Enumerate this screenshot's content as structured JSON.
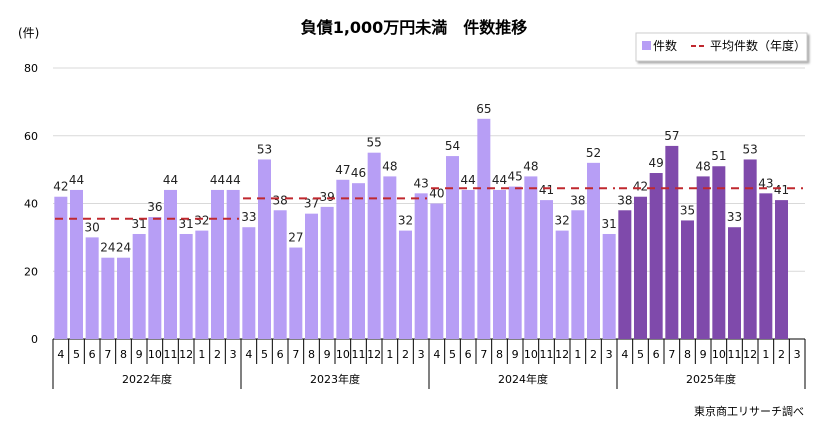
{
  "chart_data": {
    "type": "bar",
    "title": "負債1,000万円未満　件数推移",
    "ylabel": "(件)",
    "ylim": [
      0,
      80
    ],
    "yticks": [
      0,
      20,
      40,
      60,
      80
    ],
    "grid": true,
    "legend_position": "top-right",
    "legend": {
      "bars": "件数",
      "line": "平均件数（年度）"
    },
    "source": "東京商工リサーチ調べ",
    "colors": {
      "bar": "#b79ef5",
      "bar_current": "#7f4aab",
      "avg_line": "#c0282e"
    },
    "groups": [
      {
        "label": "2022年度",
        "months": [
          "4",
          "5",
          "6",
          "7",
          "8",
          "9",
          "10",
          "11",
          "12",
          "1",
          "2",
          "3"
        ],
        "values": [
          42,
          44,
          30,
          24,
          24,
          31,
          36,
          44,
          31,
          32,
          44,
          44
        ],
        "average": 35.5
      },
      {
        "label": "2023年度",
        "months": [
          "4",
          "5",
          "6",
          "7",
          "8",
          "9",
          "10",
          "11",
          "12",
          "1",
          "2",
          "3"
        ],
        "values": [
          33,
          53,
          38,
          27,
          37,
          39,
          47,
          46,
          55,
          48,
          32,
          43
        ],
        "average": 41.5
      },
      {
        "label": "2024年度",
        "months": [
          "4",
          "5",
          "6",
          "7",
          "8",
          "9",
          "10",
          "11",
          "12",
          "1",
          "2",
          "3"
        ],
        "values": [
          40,
          54,
          44,
          65,
          44,
          45,
          48,
          41,
          32,
          38,
          52,
          31
        ],
        "average": 44.5
      },
      {
        "label": "2025年度",
        "months": [
          "4",
          "5",
          "6",
          "7",
          "8",
          "9",
          "10",
          "11",
          "12",
          "1",
          "2",
          "3"
        ],
        "values": [
          38,
          42,
          49,
          57,
          35,
          48,
          51,
          33,
          53,
          43,
          41,
          null
        ],
        "average": 44.5,
        "highlight": true
      }
    ]
  }
}
